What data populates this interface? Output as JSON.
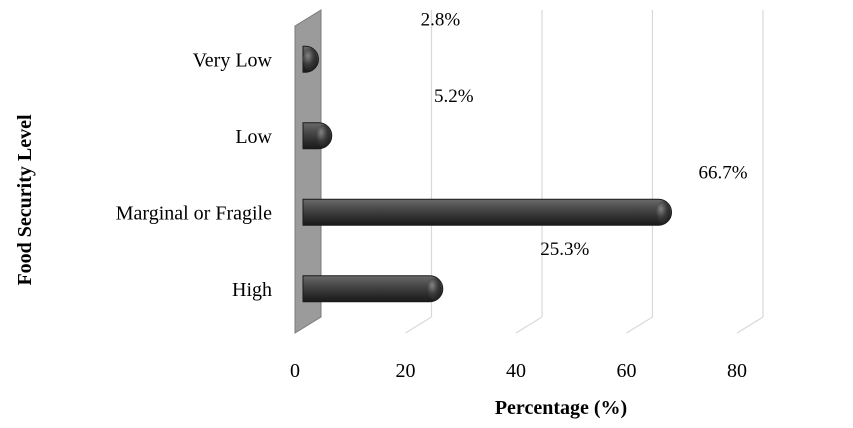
{
  "chart_data": {
    "type": "bar",
    "orientation": "horizontal",
    "categories": [
      "Very Low",
      "Low",
      "Marginal or Fragile",
      "High"
    ],
    "values": [
      2.8,
      5.2,
      66.7,
      25.3
    ],
    "data_labels": [
      "2.8%",
      "5.2%",
      "66.7%",
      "25.3%"
    ],
    "xlabel": "Percentage (%)",
    "ylabel": "Food Security Level",
    "xlim": [
      0,
      80
    ],
    "x_ticks": [
      0,
      20,
      40,
      60,
      80
    ],
    "grid": true,
    "bar_color": "#3a3a3a",
    "wall_color": "#9b9b9b"
  }
}
